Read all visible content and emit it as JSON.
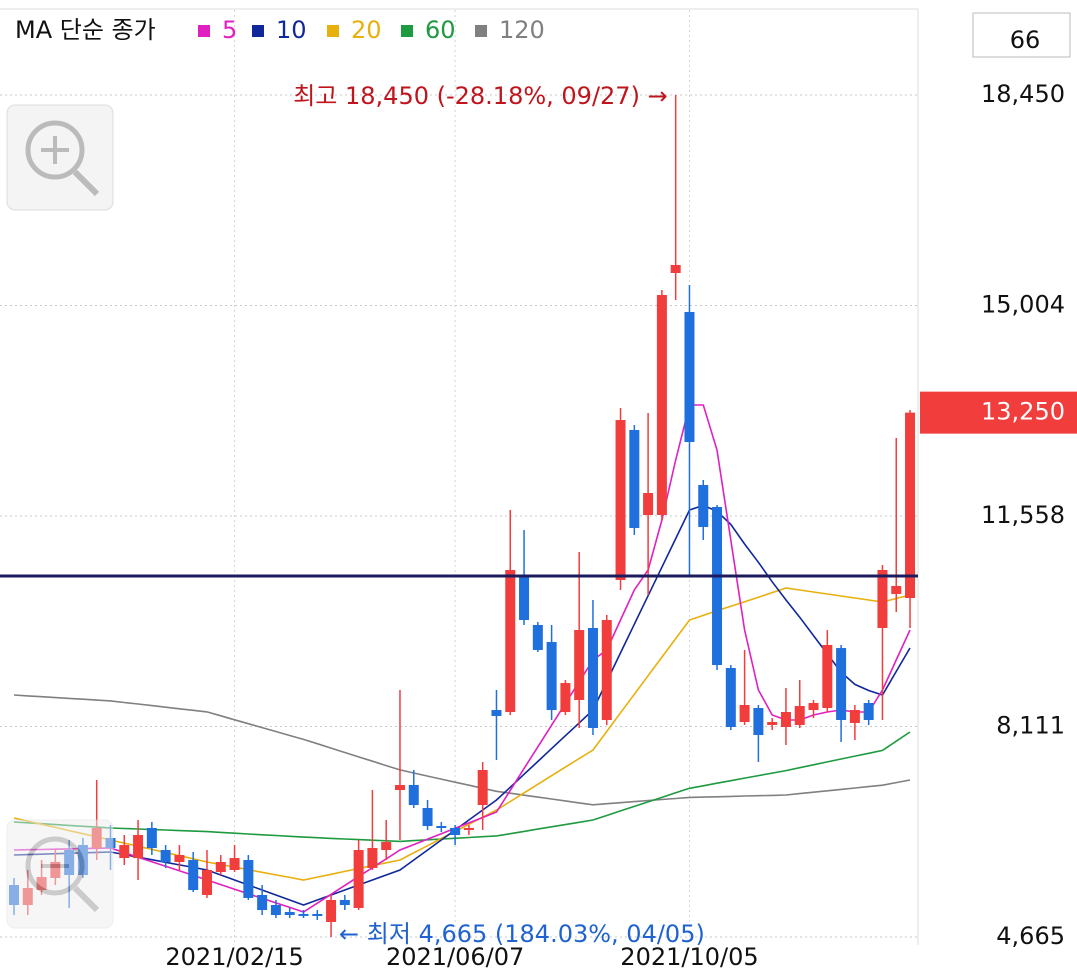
{
  "chart_data": {
    "type": "candlestick",
    "legend_title": "MA 단순 종가",
    "visible_count": 66,
    "categories": [
      null,
      null,
      null,
      null,
      null,
      null,
      null,
      null,
      null,
      null,
      null,
      null,
      null,
      null,
      null,
      null,
      "2021/02/15",
      null,
      null,
      null,
      null,
      null,
      null,
      null,
      null,
      null,
      null,
      null,
      null,
      null,
      null,
      null,
      "2021/06/07",
      null,
      null,
      null,
      null,
      null,
      null,
      null,
      null,
      null,
      null,
      null,
      null,
      null,
      null,
      null,
      null,
      "2021/10/05",
      null,
      null,
      null,
      null,
      null,
      null,
      null,
      null,
      null,
      null,
      null,
      null,
      null,
      null,
      null,
      null
    ],
    "open": [
      5516,
      5189,
      5434,
      5631,
      6089,
      6171,
      6122,
      6286,
      5958,
      5958,
      6450,
      6089,
      5893,
      5926,
      5353,
      5729,
      5762,
      5926,
      5353,
      5189,
      5074,
      5042,
      5042,
      4911,
      5271,
      5140,
      5795,
      6089,
      7072,
      7154,
      6777,
      6482,
      6450,
      6417,
      6826,
      8381,
      8349,
      10559,
      9773,
      9495,
      8349,
      8545,
      9724,
      8218,
      10510,
      12966,
      11574,
      11574,
      15536,
      14898,
      12065,
      11705,
      9069,
      8185,
      8414,
      8136,
      8103,
      8136,
      8381,
      8414,
      9396,
      8169,
      8496,
      9724,
      10281,
      10215
    ],
    "high": [
      5631,
      5762,
      5926,
      6089,
      6253,
      6286,
      7235,
      6499,
      6335,
      6581,
      6548,
      6171,
      6171,
      6057,
      6089,
      6007,
      6171,
      6007,
      5516,
      5271,
      5140,
      5107,
      5107,
      5353,
      5353,
      6253,
      7072,
      6581,
      8709,
      7399,
      6908,
      6548,
      6499,
      6499,
      7530,
      8709,
      11656,
      11328,
      9822,
      9773,
      8873,
      10968,
      10182,
      9937,
      13326,
      13047,
      13244,
      15258,
      18450,
      15340,
      12147,
      11738,
      9118,
      9364,
      8463,
      8250,
      8742,
      8873,
      8545,
      9691,
      9446,
      8463,
      8545,
      10755,
      12835,
      13293
    ],
    "low": [
      5025,
      5025,
      5353,
      5516,
      5140,
      5631,
      5926,
      5762,
      5844,
      5598,
      6007,
      5795,
      5762,
      5402,
      5304,
      5680,
      5729,
      5271,
      5025,
      4976,
      4976,
      4976,
      4943,
      4665,
      5107,
      5107,
      5762,
      5926,
      6253,
      6777,
      6417,
      6384,
      6171,
      6335,
      6417,
      7563,
      8300,
      9773,
      9331,
      8218,
      8300,
      8087,
      7972,
      8136,
      10346,
      11247,
      10264,
      11492,
      15094,
      10592,
      11165,
      9036,
      8054,
      8136,
      7530,
      8054,
      7808,
      8087,
      8250,
      8349,
      7858,
      7890,
      8136,
      8218,
      9986,
      9724
    ],
    "close": [
      5189,
      5467,
      5647,
      5893,
      5680,
      5680,
      6450,
      6122,
      6171,
      6335,
      6122,
      5893,
      6007,
      5434,
      5762,
      5893,
      5958,
      5304,
      5107,
      5025,
      5025,
      5025,
      5009,
      5271,
      5189,
      6089,
      6122,
      6220,
      7154,
      6826,
      6482,
      6450,
      6335,
      6450,
      7399,
      8283,
      10674,
      9855,
      9364,
      8381,
      8823,
      9691,
      8087,
      9855,
      13129,
      11361,
      11934,
      15176,
      15667,
      12769,
      11378,
      9118,
      8103,
      8463,
      7972,
      8185,
      8349,
      8447,
      8496,
      9446,
      8218,
      8381,
      8218,
      10674,
      10412,
      13250
    ],
    "up_color": "#f23d3d",
    "down_color": "#1f6fdc",
    "series": [
      {
        "name": "5",
        "color": "#e020c0",
        "values": [
          6089,
          6094,
          6098,
          6103,
          6108,
          6113,
          6117,
          6122,
          6047,
          5972,
          5897,
          5823,
          5748,
          5673,
          5598,
          5523,
          5448,
          5373,
          5299,
          5224,
          5149,
          5074,
          5219,
          5364,
          5509,
          5654,
          5799,
          5944,
          6089,
          6178,
          6267,
          6356,
          6444,
          6533,
          6622,
          6711,
          7067,
          7422,
          7778,
          8133,
          8489,
          8844,
          9200,
          9364,
          9855,
          10346,
          10674,
          11492,
          12474,
          13375,
          13375,
          12638,
          11165,
          9691,
          8709,
          8300,
          8218,
          8218,
          8300,
          8349,
          8381,
          8349,
          8349,
          8709,
          9200,
          9691
        ]
      },
      {
        "name": "10",
        "color": "#10289a",
        "values": [
          6007,
          6014,
          6021,
          6028,
          6036,
          6043,
          6050,
          6057,
          6015,
          5972,
          5930,
          5888,
          5846,
          5804,
          5762,
          5680,
          5598,
          5516,
          5435,
          5353,
          5271,
          5189,
          5271,
          5353,
          5435,
          5516,
          5598,
          5680,
          5762,
          5926,
          6090,
          6253,
          6417,
          6581,
          6744,
          6908,
          7118,
          7329,
          7539,
          7750,
          7960,
          8171,
          8381,
          8849,
          9317,
          9785,
          10252,
          10720,
          11188,
          11656,
          11731,
          11635,
          11420,
          11100,
          10800,
          10480,
          10183,
          9900,
          9600,
          9300,
          9000,
          8800,
          8700,
          8627,
          9012,
          9396
        ]
      },
      {
        "name": "20",
        "color": "#e8b00c",
        "values": [
          6613,
          6562,
          6510,
          6459,
          6407,
          6356,
          6304,
          6253,
          6202,
          6150,
          6099,
          6048,
          5996,
          5945,
          5893,
          5851,
          5809,
          5767,
          5725,
          5682,
          5640,
          5598,
          5645,
          5692,
          5739,
          5786,
          5832,
          5879,
          5926,
          6043,
          6160,
          6277,
          6393,
          6510,
          6627,
          6744,
          6884,
          7025,
          7165,
          7306,
          7446,
          7587,
          7727,
          8031,
          8335,
          8639,
          8943,
          9247,
          9551,
          9855,
          9930,
          10005,
          10080,
          10154,
          10229,
          10304,
          10379,
          10346,
          10313,
          10281,
          10248,
          10215,
          10183,
          10150,
          10207,
          10264
        ]
      },
      {
        "name": "60",
        "color": "#1e9a40",
        "values": [
          6548,
          6534,
          6520,
          6506,
          6492,
          6478,
          6464,
          6450,
          6441,
          6433,
          6424,
          6416,
          6407,
          6399,
          6390,
          6377,
          6364,
          6351,
          6339,
          6326,
          6313,
          6300,
          6290,
          6280,
          6270,
          6260,
          6250,
          6240,
          6230,
          6243,
          6256,
          6269,
          6281,
          6294,
          6307,
          6320,
          6357,
          6394,
          6431,
          6469,
          6506,
          6543,
          6580,
          6654,
          6729,
          6803,
          6877,
          6951,
          7026,
          7100,
          7141,
          7183,
          7224,
          7266,
          7307,
          7349,
          7390,
          7437,
          7484,
          7531,
          7579,
          7626,
          7673,
          7720,
          7870,
          8021
        ]
      },
      {
        "name": "120",
        "color": "#808080",
        "values": [
          8627,
          8613,
          8599,
          8585,
          8572,
          8558,
          8544,
          8530,
          8504,
          8479,
          8453,
          8427,
          8401,
          8376,
          8350,
          8286,
          8221,
          8157,
          8093,
          8029,
          7964,
          7900,
          7829,
          7757,
          7686,
          7614,
          7543,
          7471,
          7400,
          7350,
          7300,
          7250,
          7200,
          7150,
          7100,
          7050,
          7019,
          6987,
          6956,
          6924,
          6893,
          6861,
          6830,
          6847,
          6864,
          6881,
          6899,
          6916,
          6933,
          6950,
          6956,
          6961,
          6967,
          6973,
          6979,
          6984,
          6990,
          7013,
          7036,
          7059,
          7081,
          7104,
          7127,
          7150,
          7193,
          7235
        ]
      }
    ],
    "ylim": [
      4534,
      19842
    ],
    "yticks": [
      {
        "value": 18450,
        "label": "18,450"
      },
      {
        "value": 15004,
        "label": "15,004"
      },
      {
        "value": 11558,
        "label": "11,558"
      },
      {
        "value": 8111,
        "label": "8,111"
      },
      {
        "value": 4665,
        "label": "4,665"
      }
    ],
    "grid": true,
    "current_price": {
      "value": 13250,
      "label": "13,250"
    },
    "reference_line": 10575,
    "annotations": {
      "max": "최고 18,450 (-28.18%, 09/27) →",
      "min": "← 최저 4,665 (184.03%, 04/05)"
    }
  }
}
